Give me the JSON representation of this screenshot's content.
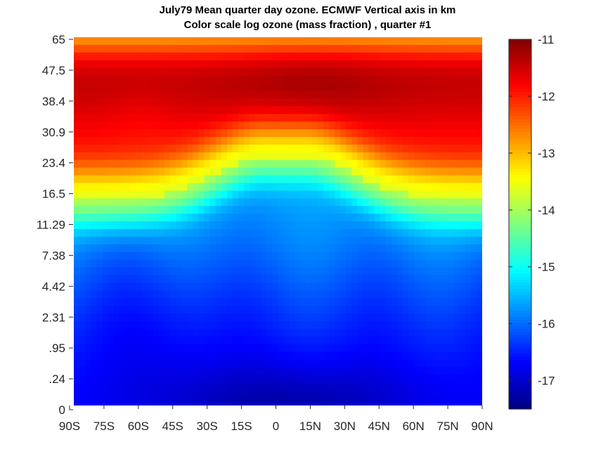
{
  "chart_data": {
    "type": "heatmap",
    "title": [
      "July79 Mean quarter day ozone.  ECMWF Vertical axis in km",
      "Color scale log ozone (mass fraction) ,  quarter #1"
    ],
    "xlabel": "",
    "ylabel": "",
    "x_tick_labels": [
      "90S",
      "75S",
      "60S",
      "45S",
      "30S",
      "15S",
      "0",
      "15N",
      "30N",
      "45N",
      "60N",
      "75N",
      "90N"
    ],
    "x_range_degrees_latitude": [
      -90,
      90
    ],
    "y_tick_labels": [
      "0",
      ".24",
      ".95",
      "2.31",
      "4.42",
      "7.38",
      "11.29",
      "16.5",
      "23.4",
      "30.9",
      "38.4",
      "47.5",
      "65"
    ],
    "y_axis_note": "levels are unevenly spaced in km; tick labels mark equally spaced model levels",
    "colorbar": {
      "colormap": "jet",
      "range": [
        -17.5,
        -11
      ],
      "tick_labels": [
        "-11",
        "-12",
        "-13",
        "-14",
        "-15",
        "-16",
        "-17"
      ],
      "ticks": [
        -11,
        -12,
        -13,
        -14,
        -15,
        -16,
        -17
      ]
    },
    "grid": false,
    "field_summary": [
      {
        "region": "upper levels 30.9-47.5 km, all latitudes",
        "approx_value": -11.5
      },
      {
        "region": "maximum near 38.4 km around 15N",
        "approx_value": -11.1
      },
      {
        "region": "top level 65 km",
        "approx_value": -12.8
      },
      {
        "region": "tropopause transition near 16.5-23.4 km",
        "approx_value": -13.5
      },
      {
        "region": "tropical troposphere 7.38-16.5 km",
        "approx_value": -15.9
      },
      {
        "region": "lower troposphere 0-4.42 km",
        "approx_value": -16.6
      },
      {
        "region": "surface level near equator",
        "approx_value": -17.3
      }
    ]
  }
}
